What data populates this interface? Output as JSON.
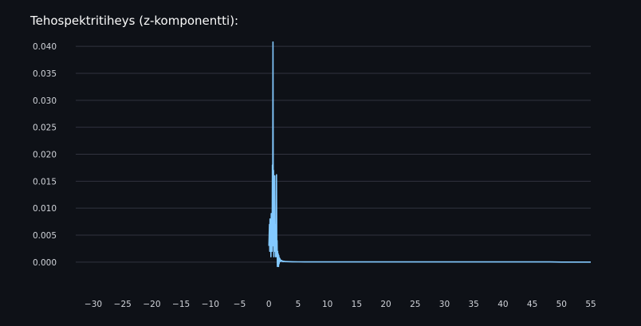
{
  "chart_data": {
    "type": "line",
    "title": "Tehospektritiheys (z-komponentti):",
    "xlabel": "",
    "ylabel": "",
    "xlim": [
      -33,
      55
    ],
    "ylim": [
      -0.0015,
      0.0415
    ],
    "grid": true,
    "xticks": [
      -30,
      -25,
      -20,
      -15,
      -10,
      -5,
      0,
      5,
      10,
      15,
      20,
      25,
      30,
      35,
      40,
      45,
      50,
      55
    ],
    "xtick_labels": [
      "−30",
      "−25",
      "−20",
      "−15",
      "−10",
      "−5",
      "0",
      "5",
      "10",
      "15",
      "20",
      "25",
      "30",
      "35",
      "40",
      "45",
      "50",
      "55"
    ],
    "yticks": [
      0.0,
      0.005,
      0.01,
      0.015,
      0.02,
      0.025,
      0.03,
      0.035,
      0.04
    ],
    "ytick_labels": [
      "0.000",
      "0.005",
      "0.010",
      "0.015",
      "0.020",
      "0.025",
      "0.030",
      "0.035",
      "0.040"
    ],
    "series": [
      {
        "color": "#83c9ff",
        "x": [
          0.0,
          0.1,
          0.15,
          0.2,
          0.25,
          0.3,
          0.35,
          0.4,
          0.45,
          0.5,
          0.55,
          0.6,
          0.65,
          0.7,
          0.75,
          0.8,
          0.85,
          0.9,
          0.95,
          1.0,
          1.05,
          1.1,
          1.15,
          1.2,
          1.25,
          1.3,
          1.35,
          1.4,
          1.45,
          1.5,
          1.55,
          1.6,
          1.65,
          1.7,
          1.75,
          1.8,
          1.85,
          1.9,
          1.95,
          2.0,
          2.1,
          2.2,
          2.3,
          2.4,
          2.5,
          2.6,
          2.8,
          3.0,
          3.5,
          4.0,
          5.0,
          10.0,
          20.0,
          30.0,
          40.0,
          48.0,
          50.0,
          55.0
        ],
        "y": [
          0.003,
          0.007,
          0.002,
          0.008,
          0.003,
          0.005,
          0.001,
          0.009,
          0.002,
          0.006,
          0.002,
          0.018,
          0.004,
          0.0408,
          0.003,
          0.017,
          0.001,
          0.012,
          0.002,
          0.016,
          0.003,
          0.005,
          0.001,
          0.007,
          0.002,
          0.0162,
          0.001,
          0.004,
          -0.0008,
          0.002,
          -0.0005,
          0.0015,
          -0.0008,
          0.0012,
          -0.0003,
          0.0008,
          0.0002,
          0.0006,
          0.0001,
          0.0004,
          0.0002,
          0.0003,
          0.0001,
          0.0002,
          0.0001,
          0.00015,
          0.0001,
          0.0001,
          8e-05,
          6e-05,
          5e-05,
          4e-05,
          4e-05,
          4e-05,
          4e-05,
          3e-05,
          1e-05,
          1e-05
        ]
      }
    ]
  }
}
